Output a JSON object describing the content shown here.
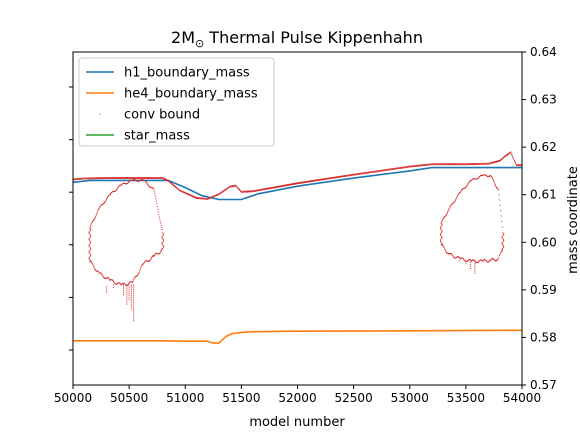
{
  "chart_data": {
    "type": "line",
    "title": "2M",
    "title_subscript": "⊙",
    "title_rest": " Thermal Pulse Kippenhahn",
    "xlabel": "model number",
    "ylabel": "mass coordinate",
    "xlim": [
      50000,
      54000
    ],
    "ylim": [
      0.57,
      0.64
    ],
    "xticks": [
      50000,
      50500,
      51000,
      51500,
      52000,
      52500,
      53000,
      53500,
      54000
    ],
    "yticks_right": [
      0.57,
      0.58,
      0.59,
      0.6,
      0.61,
      0.62,
      0.63,
      0.64
    ],
    "yticks_left_unlabeled": 6,
    "grid": false,
    "legend_position": "upper-left",
    "series": [
      {
        "name": "h1_boundary_mass",
        "color": "#1f77b4",
        "kind": "line",
        "x": [
          50000,
          50150,
          50500,
          50850,
          51000,
          51150,
          51300,
          51500,
          51650,
          52000,
          52500,
          53000,
          53200,
          53500,
          54000
        ],
        "y": [
          0.6126,
          0.613,
          0.613,
          0.613,
          0.6115,
          0.6098,
          0.609,
          0.609,
          0.6102,
          0.6118,
          0.6135,
          0.615,
          0.6157,
          0.6157,
          0.6157
        ]
      },
      {
        "name": "he4_boundary_mass",
        "color": "#ff7f0e",
        "kind": "line",
        "x": [
          50000,
          50500,
          50800,
          51000,
          51200,
          51250,
          51300,
          51330,
          51370,
          51420,
          51480,
          51600,
          52000,
          53000,
          54000
        ],
        "y": [
          0.5793,
          0.5793,
          0.5793,
          0.5792,
          0.5792,
          0.5788,
          0.5788,
          0.5795,
          0.5803,
          0.5808,
          0.581,
          0.5812,
          0.5813,
          0.5814,
          0.5815
        ]
      },
      {
        "name": "conv bound",
        "color": "#d62728",
        "kind": "points",
        "upper_envelope": {
          "x": [
            50000,
            50100,
            50300,
            50600,
            50800,
            50850,
            50950,
            51100,
            51200,
            51300,
            51400,
            51450,
            51500,
            51600,
            52000,
            52500,
            53000,
            53200,
            53500,
            53700,
            53800,
            53850,
            53900,
            53950,
            54000
          ],
          "y": [
            0.6133,
            0.6135,
            0.6136,
            0.6136,
            0.6136,
            0.613,
            0.611,
            0.6094,
            0.6092,
            0.6102,
            0.6118,
            0.612,
            0.6107,
            0.6108,
            0.6125,
            0.6143,
            0.616,
            0.6165,
            0.6165,
            0.6166,
            0.6172,
            0.6182,
            0.619,
            0.6163,
            0.6163
          ]
        },
        "pulse_regions": [
          {
            "top_x": [
              50150,
              50230,
              50330,
              50430,
              50530,
              50630,
              50720,
              50800
            ],
            "top_y": [
              0.603,
              0.607,
              0.61,
              0.612,
              0.613,
              0.613,
              0.611,
              0.602
            ],
            "bottom_x": [
              50150,
              50230,
              50330,
              50430,
              50530,
              50630,
              50720,
              50800
            ],
            "bottom_y": [
              0.596,
              0.5935,
              0.592,
              0.591,
              0.5915,
              0.5955,
              0.597,
              0.5985
            ],
            "scatter_low": [
              [
                50300,
                0.5895
              ],
              [
                50360,
                0.5905
              ],
              [
                50450,
                0.589
              ],
              [
                50480,
                0.587
              ],
              [
                50520,
                0.586
              ],
              [
                50540,
                0.5835
              ],
              [
                50500,
                0.588
              ]
            ]
          },
          {
            "top_x": [
              53280,
              53350,
              53450,
              53550,
              53650,
              53720,
              53790,
              53830
            ],
            "top_y": [
              0.604,
              0.607,
              0.6105,
              0.613,
              0.614,
              0.614,
              0.611,
              0.602
            ],
            "bottom_x": [
              53280,
              53350,
              53450,
              53550,
              53650,
              53720,
              53790,
              53830
            ],
            "bottom_y": [
              0.5995,
              0.5975,
              0.5965,
              0.596,
              0.596,
              0.5962,
              0.5965,
              0.5985
            ],
            "scatter_low": [
              [
                53440,
                0.596
              ],
              [
                53500,
                0.5955
              ],
              [
                53540,
                0.5945
              ],
              [
                53580,
                0.5935
              ]
            ]
          }
        ]
      },
      {
        "name": "star_mass",
        "color": "#2ca02c",
        "kind": "line",
        "x": [],
        "y": []
      }
    ]
  }
}
